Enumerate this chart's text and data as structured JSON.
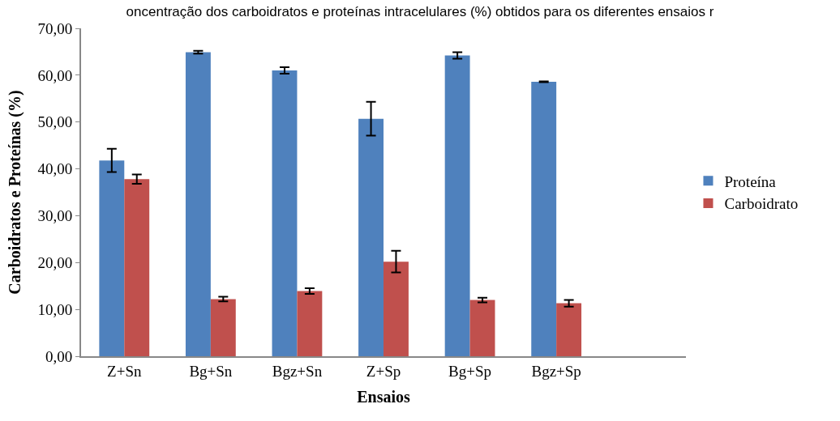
{
  "chart_data": {
    "type": "bar",
    "title": "oncentração dos carboidratos e proteínas intracelulares (%) obtidos para os diferentes ensaios r",
    "xlabel": "Ensaios",
    "ylabel": "Carboidratos e Proteínas (%)",
    "categories": [
      "Z+Sn",
      "Bg+Sn",
      "Bgz+Sn",
      "Z+Sp",
      "Bg+Sp",
      "Bgz+Sp",
      null
    ],
    "series": [
      {
        "name": "Proteína",
        "color": "#4f81bd",
        "values": [
          41.8,
          64.9,
          61.0,
          50.7,
          64.2,
          58.6,
          null
        ],
        "errors": [
          2.5,
          0.3,
          0.7,
          3.6,
          0.7,
          0.1,
          null
        ]
      },
      {
        "name": "Carboidrato",
        "color": "#c0504d",
        "values": [
          37.8,
          12.2,
          13.9,
          20.2,
          12.0,
          11.3,
          null
        ],
        "errors": [
          1.0,
          0.5,
          0.6,
          2.3,
          0.5,
          0.7,
          null
        ]
      }
    ],
    "ylim": [
      0,
      70
    ],
    "yticks": [
      {
        "value": 0,
        "label": "0,00"
      },
      {
        "value": 10,
        "label": "10,00"
      },
      {
        "value": 20,
        "label": "20,00"
      },
      {
        "value": 30,
        "label": "30,00"
      },
      {
        "value": 40,
        "label": "40,00"
      },
      {
        "value": 50,
        "label": "50,00"
      },
      {
        "value": 60,
        "label": "60,00"
      },
      {
        "value": 70,
        "label": "70,00"
      }
    ],
    "legend": "right"
  }
}
